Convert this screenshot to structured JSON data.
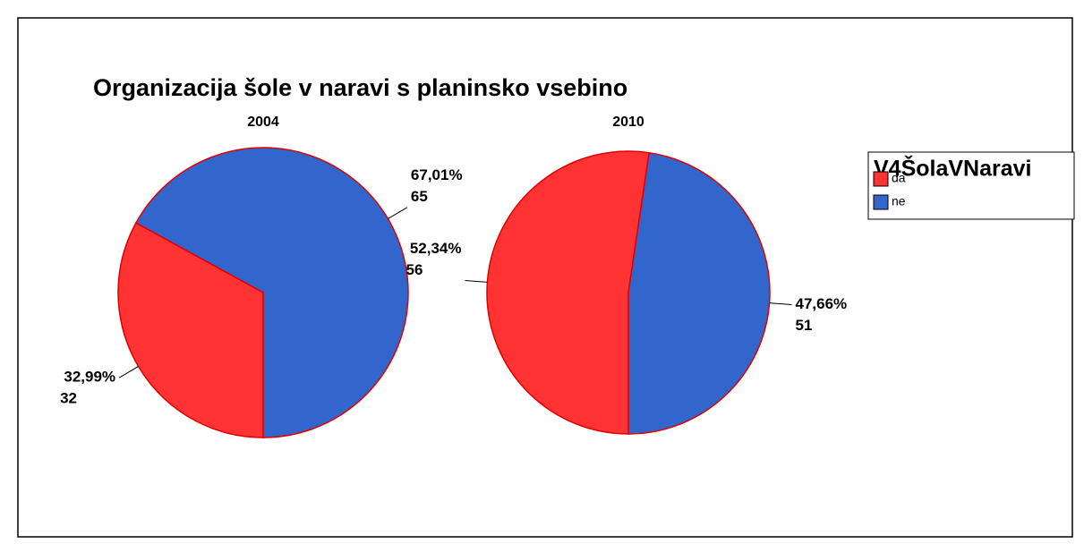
{
  "title": "Organizacija šole v naravi s planinsko vsebino",
  "legend": {
    "title": "V4ŠolaVNaravi"
  },
  "chart_data": [
    {
      "type": "pie",
      "title": "2004",
      "categories": [
        "da",
        "ne"
      ],
      "colors": [
        "#ff3333",
        "#3366cc"
      ],
      "values": [
        32.99,
        67.01
      ],
      "value_labels": [
        "32,99%",
        "67,01%"
      ],
      "counts": [
        32,
        65
      ]
    },
    {
      "type": "pie",
      "title": "2010",
      "categories": [
        "da",
        "ne"
      ],
      "colors": [
        "#ff3333",
        "#3366cc"
      ],
      "values": [
        52.34,
        47.66
      ],
      "value_labels": [
        "52,34%",
        "47,66%"
      ],
      "counts": [
        56,
        51
      ]
    }
  ]
}
